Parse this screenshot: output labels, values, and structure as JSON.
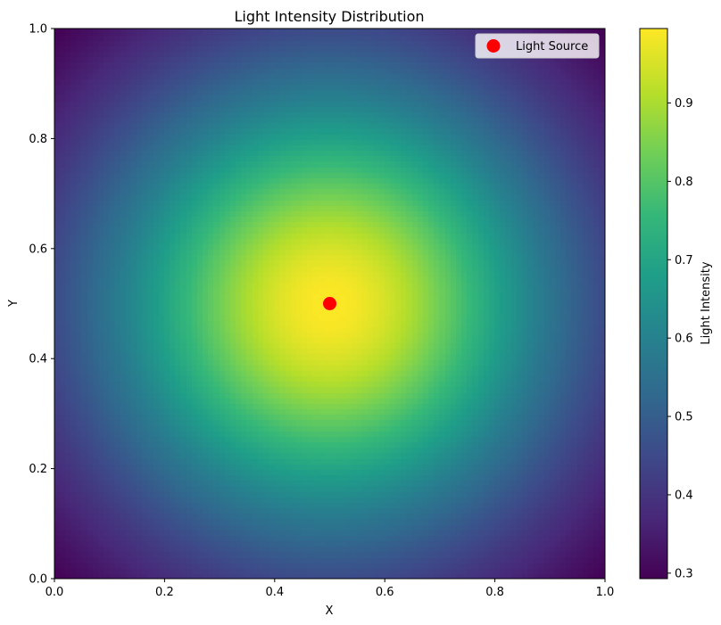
{
  "chart_data": {
    "type": "heatmap",
    "title": "Light Intensity Distribution",
    "xlabel": "X",
    "ylabel": "Y",
    "xlim": [
      0,
      1
    ],
    "ylim": [
      0,
      1
    ],
    "x_ticks": [
      "0.0",
      "0.2",
      "0.4",
      "0.6",
      "0.8",
      "1.0"
    ],
    "y_ticks": [
      "0.0",
      "0.2",
      "0.4",
      "0.6",
      "0.8",
      "1.0"
    ],
    "grid": false,
    "colormap": "viridis",
    "colorbar": {
      "label": "Light Intensity",
      "range": [
        0.293,
        0.995
      ],
      "ticks": [
        "0.3",
        "0.4",
        "0.5",
        "0.6",
        "0.7",
        "0.8",
        "0.9"
      ]
    },
    "field": {
      "description_center": [
        0.5,
        0.5
      ],
      "max_value": 0.995,
      "corner_value": 0.293
    },
    "series": [
      {
        "name": "Light Source",
        "type": "scatter",
        "color": "#ff0000",
        "points": [
          {
            "x": 0.5,
            "y": 0.5
          }
        ]
      }
    ],
    "legend": {
      "position": "top-right",
      "entries": [
        "Light Source"
      ]
    }
  }
}
